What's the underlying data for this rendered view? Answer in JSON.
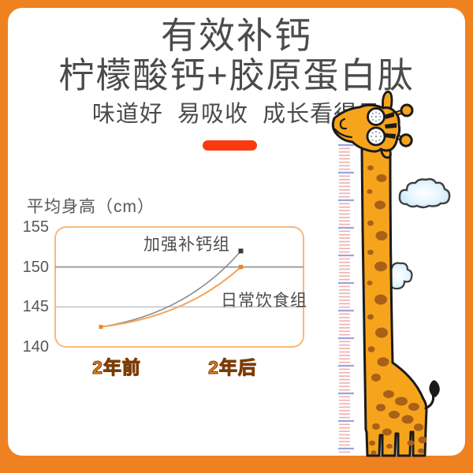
{
  "header": {
    "title_line1": "有效补钙",
    "title_line2": "柠檬酸钙+胶原蛋白肽",
    "subtitle": "味道好  易吸收  成长看得见"
  },
  "chart_data": {
    "type": "line",
    "title": "平均身高（cm）",
    "categories": [
      "2年前",
      "2年后"
    ],
    "series": [
      {
        "name": "加强补钙组",
        "values": [
          142.5,
          152
        ],
        "color": "#8C8C8C",
        "marker_color": "#3A3A3A"
      },
      {
        "name": "日常饮食组",
        "values": [
          142.5,
          150
        ],
        "color": "#F5A45A",
        "marker_color": "#F08423"
      }
    ],
    "ylim": [
      140,
      155
    ],
    "yticks": [
      155,
      150,
      145,
      140
    ],
    "gridlines": [
      150,
      145
    ],
    "grid_on": true,
    "xlabel": "",
    "ylabel": "平均身高（cm）",
    "legend_position": "inline-annotations"
  },
  "illustration": {
    "description": "cartoon giraffe beside a growth ruler with two clouds"
  },
  "colors": {
    "background": "#EF8120",
    "card": "#FFFFFF",
    "heading_text": "#4B4B4B",
    "accent_bar": "#FB3A0F",
    "chart_text": "#575757",
    "axis_label_orange": "#E8821E",
    "axis_label_outline": "#7A3C05",
    "chart_border": "#F8B87D",
    "gridline_major": "#9C9C9C",
    "gridline_minor": "#BFBFBF",
    "giraffe_body": "#F6A41C",
    "giraffe_spots": "#A96018",
    "outline": "#1A1A1A",
    "ruler_minor": "#F2AEAB",
    "ruler_major": "#9AA5DB",
    "cloud_edge": "#BEE3F5",
    "cloud_outline": "#3E3E3E"
  }
}
